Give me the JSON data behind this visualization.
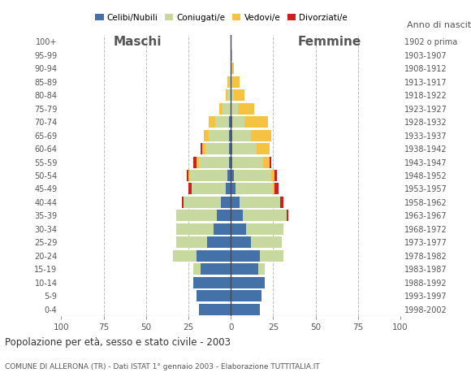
{
  "title": "Popolazione per età, sesso e stato civile - 2003",
  "subtitle": "COMUNE DI ALLERONA (TR) - Dati ISTAT 1° gennaio 2003 - Elaborazione TUTTITALIA.IT",
  "age_groups": [
    "0-4",
    "5-9",
    "10-14",
    "15-19",
    "20-24",
    "25-29",
    "30-34",
    "35-39",
    "40-44",
    "45-49",
    "50-54",
    "55-59",
    "60-64",
    "65-69",
    "70-74",
    "75-79",
    "80-84",
    "85-89",
    "90-94",
    "95-99",
    "100+"
  ],
  "birth_years": [
    "1998-2002",
    "1993-1997",
    "1988-1992",
    "1983-1987",
    "1978-1982",
    "1973-1977",
    "1968-1972",
    "1963-1967",
    "1958-1962",
    "1953-1957",
    "1948-1952",
    "1943-1947",
    "1938-1942",
    "1933-1937",
    "1928-1932",
    "1923-1927",
    "1918-1922",
    "1913-1917",
    "1908-1912",
    "1903-1907",
    "1902 o prima"
  ],
  "colors": {
    "celibi": "#4472a8",
    "coniugati": "#c8d9a0",
    "vedovi": "#f5c242",
    "divorziati": "#cc2020"
  },
  "males": {
    "celibi": [
      19,
      20,
      22,
      18,
      20,
      14,
      10,
      8,
      6,
      3,
      2,
      1,
      1,
      1,
      1,
      0,
      0,
      0,
      0,
      0,
      0
    ],
    "coniugati": [
      0,
      0,
      0,
      4,
      14,
      18,
      22,
      24,
      22,
      20,
      22,
      18,
      14,
      12,
      8,
      5,
      2,
      1,
      0,
      0,
      0
    ],
    "vedovi": [
      0,
      0,
      0,
      0,
      0,
      0,
      0,
      0,
      0,
      0,
      1,
      1,
      2,
      3,
      4,
      2,
      1,
      1,
      0,
      0,
      0
    ],
    "divorziati": [
      0,
      0,
      0,
      0,
      0,
      0,
      0,
      0,
      1,
      2,
      1,
      2,
      1,
      0,
      0,
      0,
      0,
      0,
      0,
      0,
      0
    ]
  },
  "females": {
    "nubili": [
      17,
      18,
      20,
      16,
      17,
      12,
      9,
      7,
      5,
      3,
      2,
      1,
      1,
      1,
      1,
      0,
      0,
      0,
      0,
      0,
      0
    ],
    "coniugate": [
      0,
      0,
      0,
      4,
      14,
      18,
      22,
      26,
      24,
      22,
      22,
      18,
      14,
      11,
      7,
      4,
      2,
      1,
      0,
      0,
      0
    ],
    "vedove": [
      0,
      0,
      0,
      0,
      0,
      0,
      0,
      0,
      0,
      1,
      2,
      4,
      8,
      12,
      14,
      10,
      6,
      4,
      2,
      1,
      0
    ],
    "divorziate": [
      0,
      0,
      0,
      0,
      0,
      0,
      0,
      1,
      2,
      2,
      1,
      1,
      0,
      0,
      0,
      0,
      0,
      0,
      0,
      0,
      0
    ]
  },
  "xlim": 100,
  "background_color": "#ffffff",
  "grid_color": "#bbbbbb"
}
